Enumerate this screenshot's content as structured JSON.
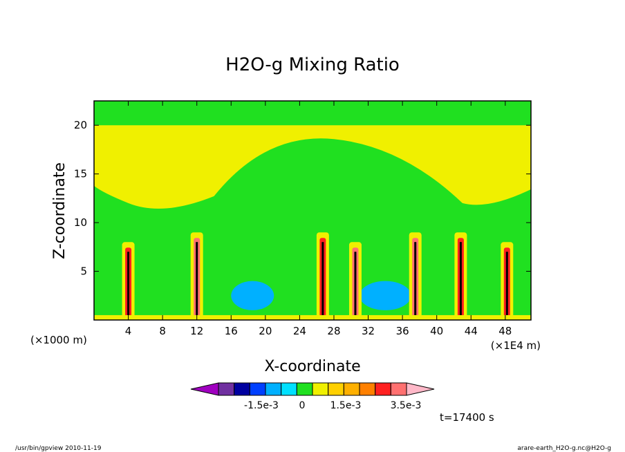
{
  "chart_data": {
    "type": "heatmap",
    "title": "H2O-g Mixing Ratio",
    "xlabel": "X-coordinate",
    "ylabel": "Z-coordinate",
    "x_unit_left": "(×1000 m)",
    "x_unit_right": "(×1E4 m)",
    "xlim": [
      0,
      51
    ],
    "ylim": [
      0,
      22.5
    ],
    "x_ticks": [
      4,
      8,
      12,
      16,
      20,
      24,
      28,
      32,
      36,
      40,
      44,
      48
    ],
    "y_ticks": [
      5,
      10,
      15,
      20
    ],
    "background_level": 0,
    "features": [
      {
        "name": "upper-moist-band",
        "x": [
          0,
          51
        ],
        "z": [
          12,
          20
        ],
        "level": 0.5
      },
      {
        "name": "lower-dry-pocket",
        "x": [
          16,
          21
        ],
        "z": [
          1,
          4
        ],
        "level": -1.0
      },
      {
        "name": "lower-dry-pocket",
        "x": [
          31,
          37
        ],
        "z": [
          1,
          4
        ],
        "level": -1.0
      },
      {
        "name": "convective-column",
        "x": [
          4,
          4
        ],
        "z": [
          0,
          8
        ],
        "level": 2.5
      },
      {
        "name": "convective-column",
        "x": [
          12,
          12
        ],
        "z": [
          0,
          9
        ],
        "level": 3.0
      },
      {
        "name": "convective-column",
        "x": [
          26.7,
          26.7
        ],
        "z": [
          0,
          9
        ],
        "level": 2.5
      },
      {
        "name": "convective-column",
        "x": [
          30.5,
          30.5
        ],
        "z": [
          0,
          8
        ],
        "level": 3.0
      },
      {
        "name": "convective-column",
        "x": [
          37.5,
          37.5
        ],
        "z": [
          0,
          9
        ],
        "level": 3.0
      },
      {
        "name": "convective-column",
        "x": [
          42.8,
          42.8
        ],
        "z": [
          0,
          9
        ],
        "level": 2.5
      },
      {
        "name": "convective-column",
        "x": [
          48.2,
          48.2
        ],
        "z": [
          0,
          8
        ],
        "level": 2.5
      }
    ],
    "colorbar": {
      "colors": [
        "#a000c0",
        "#7030a0",
        "#0000a0",
        "#0040ff",
        "#00b0ff",
        "#00e0ff",
        "#20e020",
        "#f0f000",
        "#ffd000",
        "#ffb000",
        "#ff8000",
        "#ff2020",
        "#ff7070",
        "#ffb8c8"
      ],
      "labels": [
        "-1.5e-3",
        "0",
        "1.5e-3",
        "3.5e-3"
      ],
      "label_levels": [
        -1.5,
        0,
        1.5,
        3.5
      ]
    },
    "time_label": "t=17400 s"
  },
  "footer": {
    "left": "/usr/bin/gpview  2010-11-19",
    "right": "arare-earth_H2O-g.nc@H2O-g"
  }
}
